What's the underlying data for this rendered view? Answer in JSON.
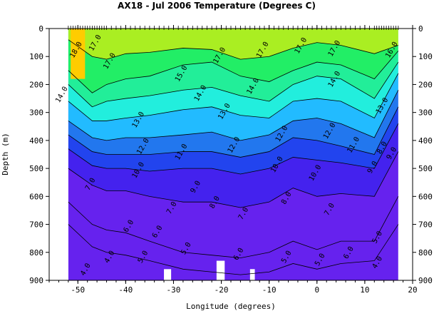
{
  "chart_data": {
    "type": "heatmap",
    "title": "AX18 - Jul 2006    Temperature (Degrees C)",
    "xlabel": "Longitude (degrees)",
    "ylabel": "Depth (m)",
    "xlim": [
      -56,
      20
    ],
    "ylim": [
      900,
      0
    ],
    "x_ticks": [
      -50,
      -40,
      -30,
      -20,
      -10,
      0,
      10,
      20
    ],
    "y_ticks": [
      0,
      100,
      200,
      300,
      400,
      500,
      600,
      700,
      800,
      900
    ],
    "grid": false,
    "legend": "none",
    "temperature_bands": [
      {
        "min": 18.0,
        "max": 20.0,
        "color": "#ffcc00"
      },
      {
        "min": 17.0,
        "max": 18.0,
        "color": "#aaee22"
      },
      {
        "min": 16.0,
        "max": 17.0,
        "color": "#55ee22"
      },
      {
        "min": 15.0,
        "max": 16.0,
        "color": "#22ee66"
      },
      {
        "min": 14.0,
        "max": 15.0,
        "color": "#22ee99"
      },
      {
        "min": 13.0,
        "max": 14.0,
        "color": "#22eedd"
      },
      {
        "min": 12.0,
        "max": 13.0,
        "color": "#22bbff"
      },
      {
        "min": 11.0,
        "max": 12.0,
        "color": "#2277ee"
      },
      {
        "min": 10.0,
        "max": 11.0,
        "color": "#2244ee"
      },
      {
        "min": 8.0,
        "max": 10.0,
        "color": "#4422ee"
      },
      {
        "min": 4.0,
        "max": 8.0,
        "color": "#6622ee"
      }
    ],
    "isotherms": [
      {
        "value": 17.0,
        "depth": [
          40,
          100,
          110,
          90,
          85,
          70,
          75,
          110,
          100,
          70,
          50,
          60,
          90,
          60
        ],
        "lon": [
          -52,
          -47,
          -44,
          -40,
          -35,
          -28,
          -22,
          -16,
          -10,
          -5,
          0,
          5,
          12,
          17
        ]
      },
      {
        "value": 15.0,
        "depth": [
          150,
          230,
          200,
          180,
          170,
          130,
          120,
          170,
          190,
          150,
          120,
          130,
          180,
          80
        ],
        "lon": [
          -52,
          -47,
          -44,
          -40,
          -35,
          -28,
          -22,
          -16,
          -10,
          -5,
          0,
          5,
          12,
          17
        ]
      },
      {
        "value": 14.0,
        "depth": [
          200,
          280,
          260,
          250,
          240,
          220,
          210,
          240,
          260,
          200,
          170,
          180,
          250,
          120
        ],
        "lon": [
          -52,
          -47,
          -44,
          -40,
          -35,
          -28,
          -22,
          -16,
          -10,
          -5,
          0,
          5,
          12,
          17
        ]
      },
      {
        "value": 13.0,
        "depth": [
          260,
          330,
          330,
          320,
          310,
          290,
          280,
          310,
          320,
          260,
          250,
          260,
          320,
          160
        ],
        "lon": [
          -52,
          -47,
          -44,
          -40,
          -35,
          -28,
          -22,
          -16,
          -10,
          -5,
          0,
          5,
          12,
          17
        ]
      },
      {
        "value": 12.0,
        "depth": [
          330,
          390,
          400,
          390,
          390,
          380,
          370,
          400,
          380,
          330,
          320,
          340,
          390,
          220
        ],
        "lon": [
          -52,
          -47,
          -44,
          -40,
          -35,
          -28,
          -22,
          -16,
          -10,
          -5,
          0,
          5,
          12,
          17
        ]
      },
      {
        "value": 11.0,
        "depth": [
          380,
          440,
          450,
          450,
          450,
          440,
          440,
          460,
          440,
          390,
          400,
          420,
          450,
          280
        ],
        "lon": [
          -52,
          -47,
          -44,
          -40,
          -35,
          -28,
          -22,
          -16,
          -10,
          -5,
          0,
          5,
          12,
          17
        ]
      },
      {
        "value": 10.0,
        "depth": [
          430,
          490,
          500,
          500,
          510,
          500,
          500,
          520,
          500,
          460,
          470,
          480,
          500,
          340
        ],
        "lon": [
          -52,
          -47,
          -44,
          -40,
          -35,
          -28,
          -22,
          -16,
          -10,
          -5,
          0,
          5,
          12,
          17
        ]
      },
      {
        "value": 8.0,
        "depth": [
          500,
          560,
          580,
          580,
          600,
          620,
          620,
          640,
          620,
          570,
          600,
          590,
          600,
          440
        ],
        "lon": [
          -52,
          -47,
          -44,
          -40,
          -35,
          -28,
          -22,
          -16,
          -10,
          -5,
          0,
          5,
          12,
          17
        ]
      },
      {
        "value": 6.0,
        "depth": [
          620,
          700,
          720,
          730,
          760,
          800,
          810,
          820,
          800,
          760,
          790,
          760,
          760,
          600
        ],
        "lon": [
          -52,
          -47,
          -44,
          -40,
          -35,
          -28,
          -22,
          -16,
          -10,
          -5,
          0,
          5,
          12,
          17
        ]
      },
      {
        "value": 5.0,
        "depth": [
          700,
          780,
          800,
          810,
          830,
          860,
          870,
          880,
          870,
          840,
          860,
          840,
          830,
          700
        ],
        "lon": [
          -52,
          -47,
          -44,
          -40,
          -35,
          -28,
          -22,
          -16,
          -10,
          -5,
          0,
          5,
          12,
          17
        ]
      }
    ],
    "contour_labels": [
      {
        "text": "18.0",
        "lon": -50,
        "depth": 80
      },
      {
        "text": "17.0",
        "lon": -46,
        "depth": 55
      },
      {
        "text": "17.0",
        "lon": -43,
        "depth": 120
      },
      {
        "text": "17.0",
        "lon": -20,
        "depth": 100
      },
      {
        "text": "17.0",
        "lon": -11,
        "depth": 80
      },
      {
        "text": "17.0",
        "lon": -3,
        "depth": 65
      },
      {
        "text": "17.0",
        "lon": 4,
        "depth": 75
      },
      {
        "text": "16.0",
        "lon": 16,
        "depth": 80
      },
      {
        "text": "15.0",
        "lon": -28,
        "depth": 165
      },
      {
        "text": "14.0",
        "lon": -53,
        "depth": 240
      },
      {
        "text": "14.0",
        "lon": -24,
        "depth": 235
      },
      {
        "text": "14.0",
        "lon": -13,
        "depth": 210
      },
      {
        "text": "14.0",
        "lon": 4,
        "depth": 185
      },
      {
        "text": "13.0",
        "lon": -19,
        "depth": 300
      },
      {
        "text": "13.0",
        "lon": -37,
        "depth": 330
      },
      {
        "text": "13.0",
        "lon": 14,
        "depth": 280
      },
      {
        "text": "12.0",
        "lon": -36,
        "depth": 425
      },
      {
        "text": "12.0",
        "lon": -17,
        "depth": 420
      },
      {
        "text": "12.0",
        "lon": -7,
        "depth": 380
      },
      {
        "text": "12.0",
        "lon": 3,
        "depth": 370
      },
      {
        "text": "11.0",
        "lon": -28,
        "depth": 445
      },
      {
        "text": "11.0",
        "lon": 8,
        "depth": 420
      },
      {
        "text": "10.0",
        "lon": -37,
        "depth": 510
      },
      {
        "text": "10.0",
        "lon": -8,
        "depth": 490
      },
      {
        "text": "10.0",
        "lon": 0,
        "depth": 520
      },
      {
        "text": "9.0",
        "lon": -25,
        "depth": 570
      },
      {
        "text": "9.0",
        "lon": 12,
        "depth": 500
      },
      {
        "text": "9.0",
        "lon": 16,
        "depth": 450
      },
      {
        "text": "8.0",
        "lon": -21,
        "depth": 625
      },
      {
        "text": "8.0",
        "lon": -6,
        "depth": 610
      },
      {
        "text": "8.0",
        "lon": 14,
        "depth": 430
      },
      {
        "text": "7.0",
        "lon": -30,
        "depth": 645
      },
      {
        "text": "7.0",
        "lon": -15,
        "depth": 665
      },
      {
        "text": "7.0",
        "lon": 3,
        "depth": 650
      },
      {
        "text": "7.0",
        "lon": -47,
        "depth": 560
      },
      {
        "text": "6.0",
        "lon": -39,
        "depth": 710
      },
      {
        "text": "6.0",
        "lon": -33,
        "depth": 730
      },
      {
        "text": "6.0",
        "lon": -16,
        "depth": 810
      },
      {
        "text": "6.0",
        "lon": 7,
        "depth": 805
      },
      {
        "text": "5.0",
        "lon": -27,
        "depth": 790
      },
      {
        "text": "5.0",
        "lon": -36,
        "depth": 820
      },
      {
        "text": "5.0",
        "lon": -6,
        "depth": 820
      },
      {
        "text": "5.0",
        "lon": 1,
        "depth": 830
      },
      {
        "text": "4.0",
        "lon": -48,
        "depth": 865
      },
      {
        "text": "4.0",
        "lon": 13,
        "depth": 840
      },
      {
        "text": "4.0",
        "lon": -43,
        "depth": 820
      },
      {
        "text": "5.0",
        "lon": 13,
        "depth": 750
      }
    ],
    "data_gaps": [
      {
        "lon_start": -21,
        "lon_end": -19.3,
        "depth_start": 830,
        "depth_end": 900
      },
      {
        "lon_start": -32,
        "lon_end": -30.5,
        "depth_start": 860,
        "depth_end": 900
      },
      {
        "lon_start": -14,
        "lon_end": -13,
        "depth_start": 860,
        "depth_end": 900
      }
    ],
    "station_lons": [
      -52,
      -51.5,
      -51,
      -50.5,
      -50,
      -49.5,
      -49,
      -48.5,
      -48,
      -47.5,
      -47,
      -46.5,
      -46,
      -45.5,
      -45,
      -44.5,
      -44,
      -43,
      -42,
      -41,
      -40,
      -39,
      -38,
      -37,
      -36,
      -35,
      -34,
      -33,
      -32,
      -31,
      -30,
      -29,
      -28,
      -27,
      -26,
      -25,
      -24,
      -23,
      -22,
      -21,
      -20,
      -19,
      -18,
      -17,
      -16,
      -15,
      -14,
      -13,
      -12,
      -11,
      -10,
      -9,
      -8,
      -7,
      -6,
      -5,
      -4,
      -3,
      -2,
      -1,
      0,
      1,
      2,
      3,
      4,
      5,
      6,
      7,
      8,
      9,
      10,
      11,
      12,
      12.5,
      13,
      13.5,
      14,
      14.5,
      15,
      15.5,
      16,
      16.5,
      17
    ]
  }
}
